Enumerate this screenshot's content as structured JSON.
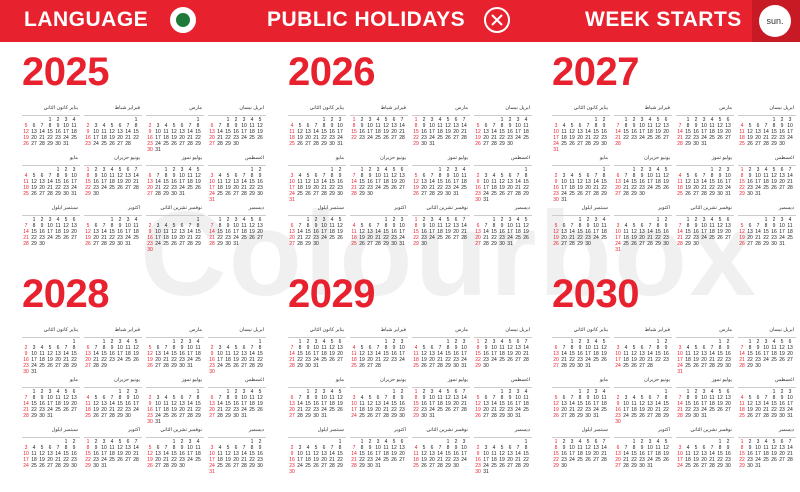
{
  "header": {
    "language_label": "LANGUAGE",
    "holidays_label": "PUBLIC HOLIDAYS",
    "week_starts_label": "WEEK STARTS",
    "week_start_value": "sun.",
    "icons": {
      "language": "arabic-flag-icon",
      "holidays": "close-icon"
    }
  },
  "colors": {
    "accent": "#e8212e",
    "accent_dark": "#c81a25",
    "text": "#222222"
  },
  "years": [
    "2025",
    "2026",
    "2027",
    "2028",
    "2029",
    "2030"
  ],
  "month_names": [
    "يناير كانون الثاني",
    "فبراير شباط",
    "مارس",
    "ابريل نيسان",
    "مايو",
    "يونيو حزيران",
    "يوليو تموز",
    "اغسطس",
    "سبتمبر ايلول",
    "اكتوبر",
    "نوفمبر تشرين الثاني",
    "ديسمبر"
  ],
  "watermark": "Colourbox"
}
